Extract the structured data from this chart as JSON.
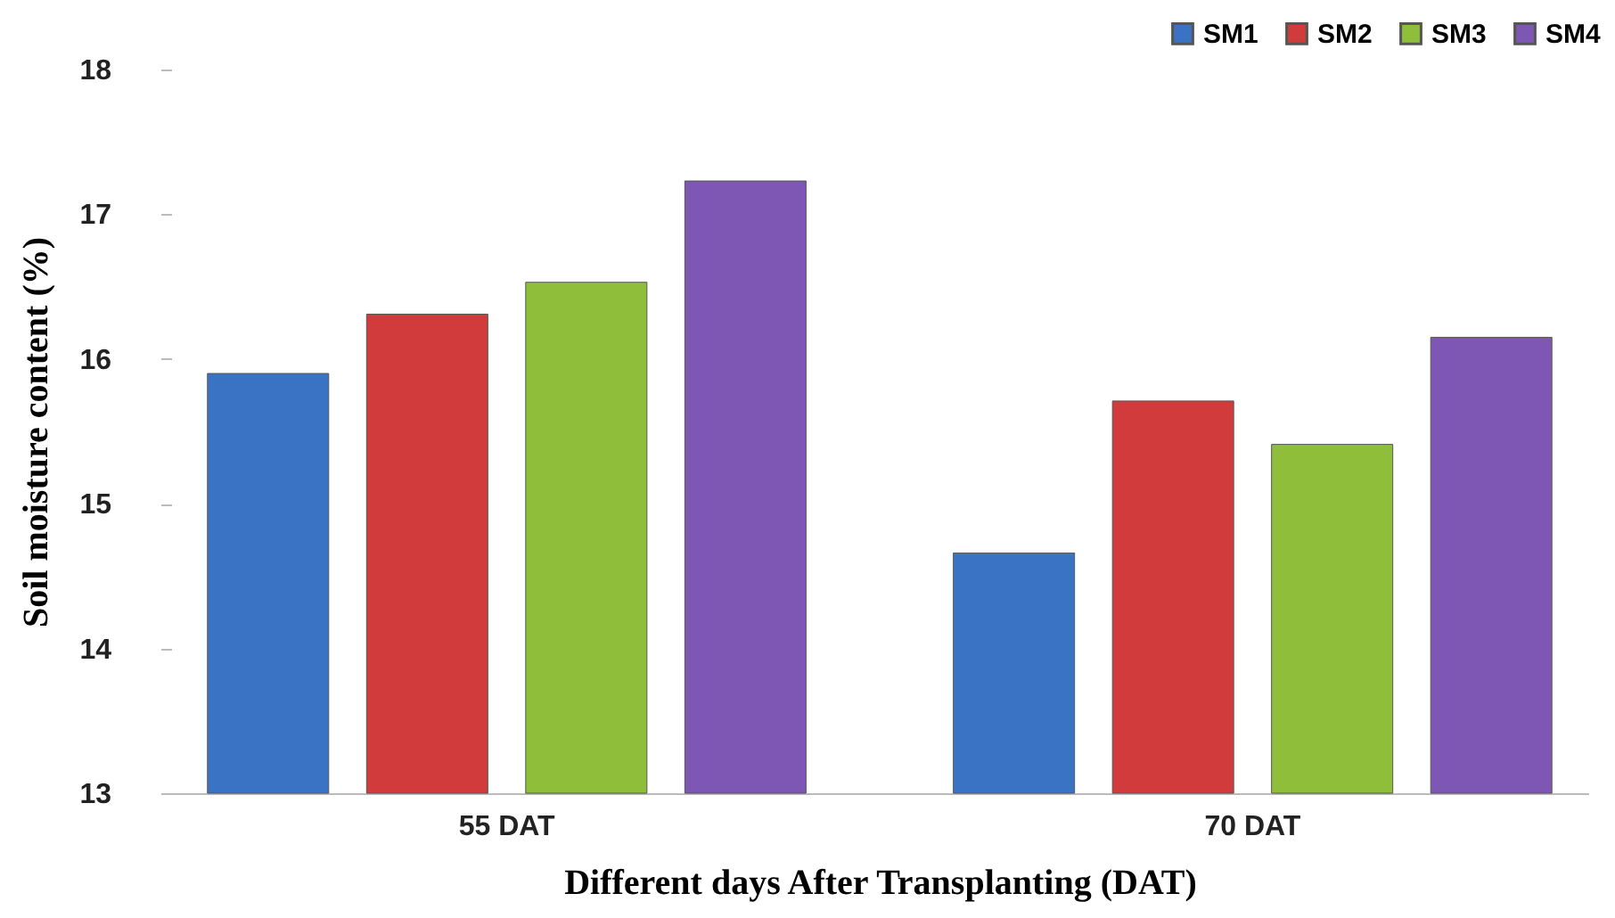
{
  "chart_data": {
    "type": "bar",
    "xlabel": "Different days After Transplanting  (DAT)",
    "ylabel": "Soil moisture content (%)",
    "categories": [
      "55 DAT",
      "70 DAT"
    ],
    "series": [
      {
        "name": "SM1",
        "color": "#3a73c4",
        "values": [
          15.9,
          14.66
        ]
      },
      {
        "name": "SM2",
        "color": "#d13b3b",
        "values": [
          16.31,
          15.71
        ]
      },
      {
        "name": "SM3",
        "color": "#8fbf3a",
        "values": [
          16.53,
          15.41
        ]
      },
      {
        "name": "SM4",
        "color": "#7e57b5",
        "values": [
          17.23,
          16.15
        ]
      }
    ],
    "ylim": [
      13,
      18
    ],
    "yticks": [
      13,
      14,
      15,
      16,
      17,
      18
    ],
    "legend": "top right"
  }
}
